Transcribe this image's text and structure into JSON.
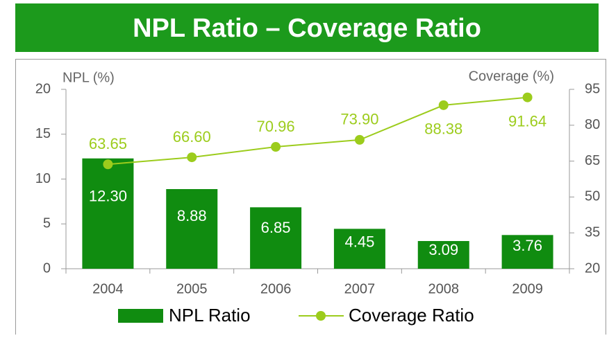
{
  "chart_data": {
    "type": "bar_line",
    "title": "NPL Ratio – Coverage Ratio",
    "ylabel": "NPL (%)",
    "y2label": "Coverage (%)",
    "categories": [
      "2004",
      "2005",
      "2006",
      "2007",
      "2008",
      "2009"
    ],
    "series": [
      {
        "name": "NPL Ratio",
        "color": "#108c10",
        "values": [
          12.3,
          8.88,
          6.85,
          4.45,
          3.09,
          3.76
        ],
        "value_labels": [
          "12.30",
          "8.88",
          "6.85",
          "4.45",
          "3.09",
          "3.76"
        ]
      },
      {
        "name": "Coverage Ratio",
        "color": "#9ccc1c",
        "axis": "y2",
        "values": [
          63.65,
          66.6,
          70.96,
          73.9,
          88.38,
          91.64
        ],
        "value_labels": [
          "63.65",
          "66.60",
          "70.96",
          "73.90",
          "88.38",
          "91.64"
        ]
      }
    ],
    "ylim": [
      0,
      20
    ],
    "yticks": [
      0,
      5,
      10,
      15,
      20
    ],
    "y2lim": [
      20,
      95
    ],
    "y2ticks": [
      20,
      35,
      50,
      65,
      80,
      95
    ]
  }
}
